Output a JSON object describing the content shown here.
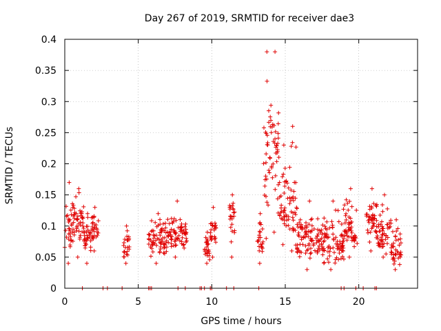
{
  "chart_data": {
    "type": "scatter",
    "title": "Day 267 of 2019, SRMTID for receiver dae3",
    "xlabel": "GPS time / hours",
    "ylabel": "SRMTID / TECUs",
    "xlim": [
      0,
      24
    ],
    "ylim": [
      0,
      0.4
    ],
    "xticks": [
      0,
      5,
      10,
      15,
      20
    ],
    "xtick_labels": [
      "0",
      "5",
      "10",
      "15",
      "20"
    ],
    "yticks": [
      0,
      0.05,
      0.1,
      0.15,
      0.2,
      0.25,
      0.3,
      0.35,
      0.4
    ],
    "ytick_labels": [
      "0",
      "0.05",
      "0.1",
      "0.15",
      "0.2",
      "0.25",
      "0.3",
      "0.35",
      "0.4"
    ],
    "grid": true,
    "marker": "+",
    "series_color": "#e00000",
    "clusters": [
      {
        "x0": 0.0,
        "x1": 0.6,
        "ymin": 0.04,
        "ymax": 0.17,
        "ycenter": 0.1
      },
      {
        "x0": 0.6,
        "x1": 1.3,
        "ymin": 0.05,
        "ymax": 0.16,
        "ycenter": 0.11
      },
      {
        "x0": 1.3,
        "x1": 1.8,
        "ymin": 0.04,
        "ymax": 0.12,
        "ycenter": 0.08
      },
      {
        "x0": 1.8,
        "x1": 2.3,
        "ymin": 0.06,
        "ymax": 0.13,
        "ycenter": 0.1
      },
      {
        "x0": 4.0,
        "x1": 4.4,
        "ymin": 0.04,
        "ymax": 0.1,
        "ycenter": 0.07
      },
      {
        "x0": 5.7,
        "x1": 7.0,
        "ymin": 0.04,
        "ymax": 0.12,
        "ycenter": 0.08
      },
      {
        "x0": 7.0,
        "x1": 8.3,
        "ymin": 0.05,
        "ymax": 0.14,
        "ycenter": 0.09
      },
      {
        "x0": 9.5,
        "x1": 9.9,
        "ymin": 0.04,
        "ymax": 0.09,
        "ycenter": 0.06
      },
      {
        "x0": 9.9,
        "x1": 10.3,
        "ymin": 0.05,
        "ymax": 0.13,
        "ycenter": 0.09
      },
      {
        "x0": 11.2,
        "x1": 11.6,
        "ymin": 0.05,
        "ymax": 0.15,
        "ycenter": 0.12
      },
      {
        "x0": 13.1,
        "x1": 13.5,
        "ymin": 0.04,
        "ymax": 0.12,
        "ycenter": 0.08
      },
      {
        "x0": 13.5,
        "x1": 14.0,
        "ymin": 0.08,
        "ymax": 0.38,
        "ycenter": 0.2
      },
      {
        "x0": 14.0,
        "x1": 14.6,
        "ymin": 0.09,
        "ymax": 0.38,
        "ycenter": 0.23
      },
      {
        "x0": 14.6,
        "x1": 15.2,
        "ymin": 0.07,
        "ymax": 0.23,
        "ycenter": 0.13
      },
      {
        "x0": 15.2,
        "x1": 15.8,
        "ymin": 0.06,
        "ymax": 0.26,
        "ycenter": 0.13
      },
      {
        "x0": 15.8,
        "x1": 17.5,
        "ymin": 0.03,
        "ymax": 0.14,
        "ycenter": 0.08
      },
      {
        "x0": 17.5,
        "x1": 19.0,
        "ymin": 0.03,
        "ymax": 0.14,
        "ycenter": 0.07
      },
      {
        "x0": 19.0,
        "x1": 19.9,
        "ymin": 0.05,
        "ymax": 0.16,
        "ycenter": 0.09
      },
      {
        "x0": 20.5,
        "x1": 21.3,
        "ymin": 0.06,
        "ymax": 0.16,
        "ycenter": 0.11
      },
      {
        "x0": 21.3,
        "x1": 22.2,
        "ymin": 0.05,
        "ymax": 0.15,
        "ycenter": 0.09
      },
      {
        "x0": 22.2,
        "x1": 22.9,
        "ymin": 0.03,
        "ymax": 0.11,
        "ycenter": 0.06
      }
    ],
    "zero_points_x": [
      1.2,
      2.6,
      2.9,
      3.9,
      5.7,
      5.8,
      5.9,
      7.7,
      8.2,
      9.2,
      9.3,
      9.5,
      9.9,
      10.0,
      11.0,
      11.5,
      13.2,
      18.8,
      19.0,
      19.8,
      20.3,
      21.1,
      21.2
    ]
  }
}
